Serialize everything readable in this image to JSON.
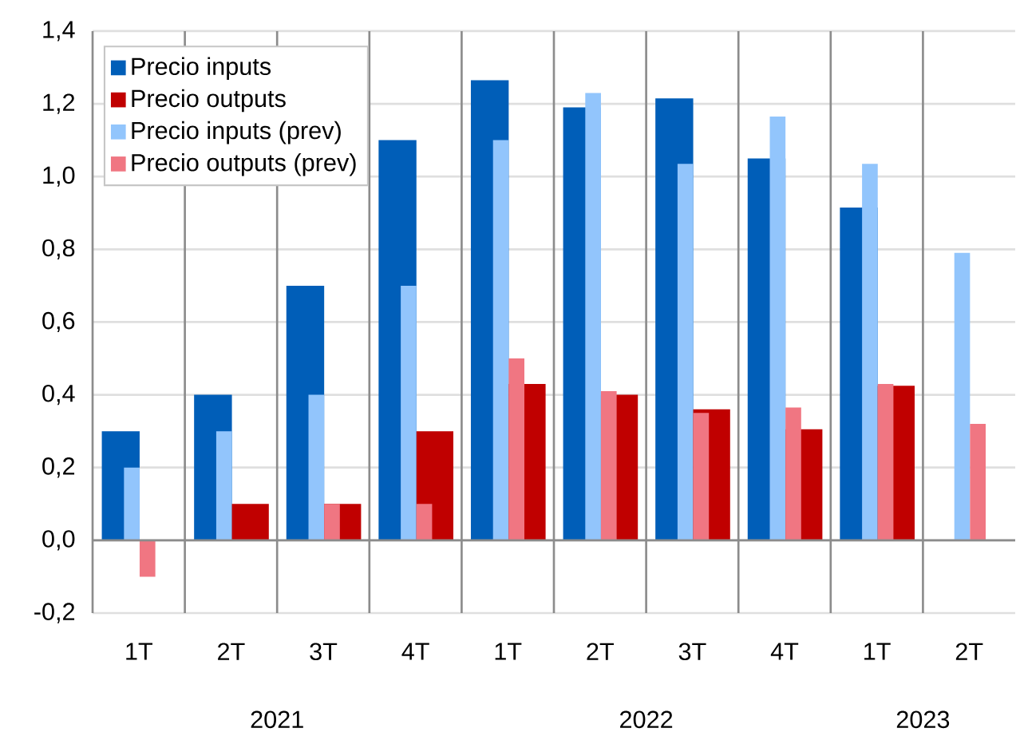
{
  "chart_data": {
    "type": "bar",
    "categories": [
      "1T",
      "2T",
      "3T",
      "4T",
      "1T",
      "2T",
      "3T",
      "4T",
      "1T",
      "2T"
    ],
    "series": [
      {
        "name": "Precio inputs",
        "color": "#005eb8",
        "values": [
          0.3,
          0.4,
          0.7,
          1.1,
          1.265,
          1.19,
          1.215,
          1.05,
          0.915,
          null
        ]
      },
      {
        "name": "Precio outputs",
        "color": "#c00000",
        "values": [
          null,
          0.1,
          0.1,
          0.3,
          0.43,
          0.4,
          0.36,
          0.305,
          0.425,
          null
        ]
      },
      {
        "name": "Precio inputs (prev)",
        "color": "#92c5fc",
        "values": [
          0.2,
          0.3,
          0.4,
          0.7,
          1.1,
          1.23,
          1.035,
          1.165,
          1.035,
          0.79
        ]
      },
      {
        "name": "Precio outputs (prev)",
        "color": "#f07682",
        "values": [
          -0.1,
          null,
          0.1,
          0.1,
          0.5,
          0.41,
          0.35,
          0.365,
          0.43,
          0.32
        ]
      }
    ],
    "ylim": [
      -0.2,
      1.4
    ],
    "yticks": [
      {
        "value": -0.2,
        "label": "-0,2"
      },
      {
        "value": 0,
        "label": "0,0"
      },
      {
        "value": 0.2,
        "label": "0,2"
      },
      {
        "value": 0.4,
        "label": "0,4"
      },
      {
        "value": 0.6,
        "label": "0,6"
      },
      {
        "value": 0.8,
        "label": "0,8"
      },
      {
        "value": 1.0,
        "label": "1,0"
      },
      {
        "value": 1.2,
        "label": "1,2"
      },
      {
        "value": 1.4,
        "label": "1,4"
      }
    ],
    "grid": "y",
    "legend": "top left",
    "annotations": [
      "2021",
      "2022",
      "2023"
    ]
  }
}
